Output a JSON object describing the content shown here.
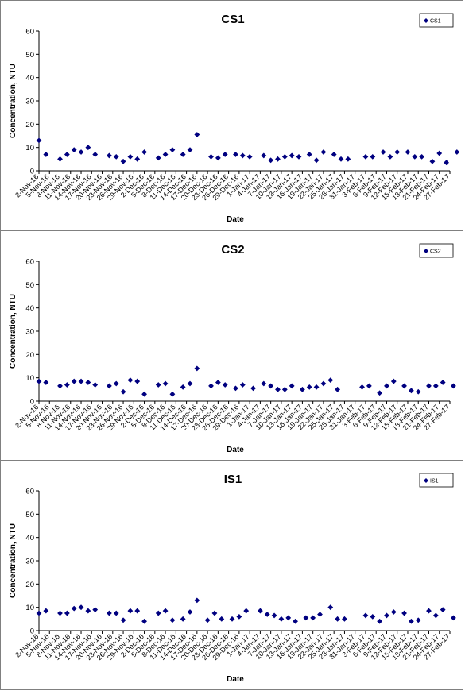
{
  "chart_data": [
    {
      "type": "scatter",
      "title": "CS1",
      "xlabel": "Date",
      "ylabel": "Concentration, NTU",
      "ylim": [
        0,
        60
      ],
      "yticks": [
        "0",
        "10",
        "20",
        "30",
        "40",
        "50",
        "60"
      ],
      "xlim": [
        "2-Nov-16",
        "27-Feb-17"
      ],
      "xtick_labels": [
        "2-Nov-16",
        "5-Nov-16",
        "8-Nov-16",
        "11-Nov-16",
        "14-Nov-16",
        "17-Nov-16",
        "20-Nov-16",
        "23-Nov-16",
        "26-Nov-16",
        "29-Nov-16",
        "2-Dec-16",
        "5-Dec-16",
        "8-Dec-16",
        "11-Dec-16",
        "14-Dec-16",
        "17-Dec-16",
        "20-Dec-16",
        "23-Dec-16",
        "26-Dec-16",
        "29-Dec-16",
        "1-Jan-17",
        "4-Jan-17",
        "7-Jan-17",
        "10-Jan-17",
        "13-Jan-17",
        "16-Jan-17",
        "19-Jan-17",
        "22-Jan-17",
        "25-Jan-17",
        "28-Jan-17",
        "31-Jan-17",
        "3-Feb-17",
        "6-Feb-17",
        "9-Feb-17",
        "12-Feb-17",
        "15-Feb-17",
        "18-Feb-17",
        "21-Feb-17",
        "24-Feb-17",
        "27-Feb-17"
      ],
      "legend": "top-right",
      "grid": false,
      "marker_color": "#000080",
      "series": [
        {
          "name": "CS1",
          "x": [
            "2-Nov-16",
            "4-Nov-16",
            "8-Nov-16",
            "10-Nov-16",
            "12-Nov-16",
            "14-Nov-16",
            "16-Nov-16",
            "18-Nov-16",
            "22-Nov-16",
            "24-Nov-16",
            "26-Nov-16",
            "28-Nov-16",
            "30-Nov-16",
            "2-Dec-16",
            "6-Dec-16",
            "8-Dec-16",
            "10-Dec-16",
            "13-Dec-16",
            "15-Dec-16",
            "17-Dec-16",
            "21-Dec-16",
            "23-Dec-16",
            "25-Dec-16",
            "28-Dec-16",
            "30-Dec-16",
            "1-Jan-17",
            "5-Jan-17",
            "7-Jan-17",
            "9-Jan-17",
            "11-Jan-17",
            "13-Jan-17",
            "15-Jan-17",
            "18-Jan-17",
            "20-Jan-17",
            "22-Jan-17",
            "25-Jan-17",
            "27-Jan-17",
            "29-Jan-17",
            "3-Feb-17",
            "5-Feb-17",
            "8-Feb-17",
            "10-Feb-17",
            "12-Feb-17",
            "15-Feb-17",
            "17-Feb-17",
            "19-Feb-17",
            "22-Feb-17",
            "24-Feb-17",
            "26-Feb-17",
            "29-Feb-17"
          ],
          "y": [
            13,
            7,
            5,
            7,
            9,
            8,
            10,
            7,
            6.5,
            6,
            4,
            6,
            5,
            8,
            5.5,
            7,
            9,
            7,
            9,
            15.5,
            6,
            5.5,
            7,
            7,
            6.5,
            6,
            6.5,
            4.5,
            5,
            6,
            6.5,
            6,
            7,
            4.5,
            8,
            7,
            5,
            5,
            6,
            6,
            8,
            6,
            8,
            8,
            6,
            6,
            4,
            7.5,
            3.5,
            8
          ]
        }
      ]
    },
    {
      "type": "scatter",
      "title": "CS2",
      "xlabel": "Date",
      "ylabel": "Concentration, NTU",
      "ylim": [
        0,
        60
      ],
      "yticks": [
        "0",
        "10",
        "20",
        "30",
        "40",
        "50",
        "60"
      ],
      "xlim": [
        "2-Nov-16",
        "27-Feb-17"
      ],
      "xtick_labels": [
        "2-Nov-16",
        "5-Nov-16",
        "8-Nov-16",
        "11-Nov-16",
        "14-Nov-16",
        "17-Nov-16",
        "20-Nov-16",
        "23-Nov-16",
        "26-Nov-16",
        "29-Nov-16",
        "2-Dec-16",
        "5-Dec-16",
        "8-Dec-16",
        "11-Dec-16",
        "14-Dec-16",
        "17-Dec-16",
        "20-Dec-16",
        "23-Dec-16",
        "26-Dec-16",
        "29-Dec-16",
        "1-Jan-17",
        "4-Jan-17",
        "7-Jan-17",
        "10-Jan-17",
        "13-Jan-17",
        "16-Jan-17",
        "19-Jan-17",
        "22-Jan-17",
        "25-Jan-17",
        "28-Jan-17",
        "31-Jan-17",
        "3-Feb-17",
        "6-Feb-17",
        "9-Feb-17",
        "12-Feb-17",
        "15-Feb-17",
        "18-Feb-17",
        "21-Feb-17",
        "24-Feb-17",
        "27-Feb-17"
      ],
      "legend": "top-right",
      "grid": false,
      "marker_color": "#000080",
      "series": [
        {
          "name": "CS2",
          "x": [
            "2-Nov-16",
            "4-Nov-16",
            "8-Nov-16",
            "10-Nov-16",
            "12-Nov-16",
            "14-Nov-16",
            "16-Nov-16",
            "18-Nov-16",
            "22-Nov-16",
            "24-Nov-16",
            "26-Nov-16",
            "28-Nov-16",
            "30-Nov-16",
            "2-Dec-16",
            "6-Dec-16",
            "8-Dec-16",
            "10-Dec-16",
            "13-Dec-16",
            "15-Dec-16",
            "17-Dec-16",
            "21-Dec-16",
            "23-Dec-16",
            "25-Dec-16",
            "28-Dec-16",
            "30-Dec-16",
            "2-Jan-17",
            "5-Jan-17",
            "7-Jan-17",
            "9-Jan-17",
            "11-Jan-17",
            "13-Jan-17",
            "16-Jan-17",
            "18-Jan-17",
            "20-Jan-17",
            "22-Jan-17",
            "24-Jan-17",
            "26-Jan-17",
            "2-Feb-17",
            "4-Feb-17",
            "7-Feb-17",
            "9-Feb-17",
            "11-Feb-17",
            "14-Feb-17",
            "16-Feb-17",
            "18-Feb-17",
            "21-Feb-17",
            "23-Feb-17",
            "25-Feb-17",
            "28-Feb-17"
          ],
          "y": [
            8.5,
            8,
            6.5,
            7,
            8.5,
            8.5,
            8,
            7,
            6.5,
            7.5,
            4,
            9,
            8.5,
            3,
            7,
            7.5,
            3,
            6,
            7.5,
            14,
            6.5,
            8,
            7,
            5.5,
            7,
            5.5,
            7.5,
            6.5,
            5,
            5,
            6.5,
            5,
            6,
            6,
            7.5,
            9,
            5,
            6,
            6.5,
            3.5,
            6.5,
            8.5,
            6.5,
            4.5,
            4,
            6.5,
            6.5,
            8,
            6.5
          ]
        }
      ]
    },
    {
      "type": "scatter",
      "title": "IS1",
      "xlabel": "Date",
      "ylabel": "Concentration, NTU",
      "ylim": [
        0,
        60
      ],
      "yticks": [
        "0",
        "10",
        "20",
        "30",
        "40",
        "50",
        "60"
      ],
      "xlim": [
        "2-Nov-16",
        "27-Feb-17"
      ],
      "xtick_labels": [
        "2-Nov-16",
        "5-Nov-16",
        "8-Nov-16",
        "11-Nov-16",
        "14-Nov-16",
        "17-Nov-16",
        "20-Nov-16",
        "23-Nov-16",
        "26-Nov-16",
        "29-Nov-16",
        "2-Dec-16",
        "5-Dec-16",
        "8-Dec-16",
        "11-Dec-16",
        "14-Dec-16",
        "17-Dec-16",
        "20-Dec-16",
        "23-Dec-16",
        "26-Dec-16",
        "29-Dec-16",
        "1-Jan-17",
        "4-Jan-17",
        "7-Jan-17",
        "10-Jan-17",
        "13-Jan-17",
        "16-Jan-17",
        "19-Jan-17",
        "22-Jan-17",
        "25-Jan-17",
        "28-Jan-17",
        "31-Jan-17",
        "3-Feb-17",
        "6-Feb-17",
        "9-Feb-17",
        "12-Feb-17",
        "15-Feb-17",
        "18-Feb-17",
        "21-Feb-17",
        "24-Feb-17",
        "27-Feb-17"
      ],
      "legend": "top-right",
      "grid": false,
      "marker_color": "#000080",
      "series": [
        {
          "name": "IS1",
          "x": [
            "2-Nov-16",
            "4-Nov-16",
            "8-Nov-16",
            "10-Nov-16",
            "12-Nov-16",
            "14-Nov-16",
            "16-Nov-16",
            "18-Nov-16",
            "22-Nov-16",
            "24-Nov-16",
            "26-Nov-16",
            "28-Nov-16",
            "30-Nov-16",
            "2-Dec-16",
            "6-Dec-16",
            "8-Dec-16",
            "10-Dec-16",
            "13-Dec-16",
            "15-Dec-16",
            "17-Dec-16",
            "20-Dec-16",
            "22-Dec-16",
            "24-Dec-16",
            "27-Dec-16",
            "29-Dec-16",
            "31-Dec-16",
            "4-Jan-17",
            "6-Jan-17",
            "8-Jan-17",
            "10-Jan-17",
            "12-Jan-17",
            "14-Jan-17",
            "17-Jan-17",
            "19-Jan-17",
            "21-Jan-17",
            "24-Jan-17",
            "26-Jan-17",
            "28-Jan-17",
            "3-Feb-17",
            "5-Feb-17",
            "7-Feb-17",
            "9-Feb-17",
            "11-Feb-17",
            "14-Feb-17",
            "16-Feb-17",
            "18-Feb-17",
            "21-Feb-17",
            "23-Feb-17",
            "25-Feb-17",
            "28-Feb-17"
          ],
          "y": [
            7.5,
            8.5,
            7.5,
            7.5,
            9.5,
            10,
            8.5,
            9,
            7.5,
            7.5,
            4.5,
            8.5,
            8.5,
            4,
            7.5,
            8.5,
            4.5,
            5,
            8,
            13,
            4.5,
            7.5,
            5,
            5,
            6,
            8.5,
            8.5,
            7,
            6.5,
            5,
            5.5,
            4,
            5.5,
            5.5,
            7,
            10,
            5,
            5,
            6.5,
            6,
            4,
            6.5,
            8,
            7.5,
            4,
            4.5,
            8.5,
            6.5,
            9,
            5.5
          ]
        }
      ]
    }
  ]
}
